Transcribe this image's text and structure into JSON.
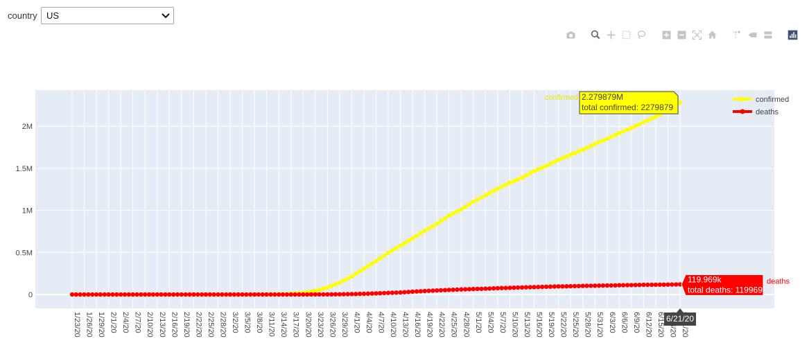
{
  "controls": {
    "country_label": "country",
    "country_value": "US"
  },
  "modebar": {
    "icons": [
      "camera-icon",
      "zoom-icon",
      "pan-icon",
      "box-select-icon",
      "lasso-select-icon",
      "zoom-in-icon",
      "zoom-out-icon",
      "autoscale-icon",
      "reset-axes-icon",
      "spike-lines-icon",
      "hover-closest-icon",
      "hover-compare-icon",
      "plotly-logo-icon"
    ],
    "active": [
      "zoom-icon",
      "plotly-logo-icon"
    ]
  },
  "chart_data": {
    "type": "line",
    "x_tick_labels": [
      "1/23/20",
      "1/26/20",
      "1/29/20",
      "2/1/20",
      "2/4/20",
      "2/7/20",
      "2/10/20",
      "2/13/20",
      "2/16/20",
      "2/19/20",
      "2/22/20",
      "2/25/20",
      "2/28/20",
      "3/2/20",
      "3/5/20",
      "3/8/20",
      "3/11/20",
      "3/14/20",
      "3/17/20",
      "3/20/20",
      "3/23/20",
      "3/26/20",
      "3/29/20",
      "4/1/20",
      "4/4/20",
      "4/7/20",
      "4/10/20",
      "4/13/20",
      "4/16/20",
      "4/19/20",
      "4/22/20",
      "4/25/20",
      "4/28/20",
      "5/1/20",
      "5/4/20",
      "5/7/20",
      "5/10/20",
      "5/13/20",
      "5/16/20",
      "5/19/20",
      "5/22/20",
      "5/25/20",
      "5/28/20",
      "5/31/20",
      "6/3/20",
      "6/6/20",
      "6/9/20",
      "6/12/20",
      "6/15/20",
      "6/18/20",
      "6/21/20"
    ],
    "y_ticks": [
      0,
      500000,
      1000000,
      1500000,
      2000000
    ],
    "y_tick_labels": [
      "0",
      "0.5M",
      "1M",
      "1.5M",
      "2M"
    ],
    "ylim": [
      -60000,
      2430000
    ],
    "grid": true,
    "legend_position": "top-right",
    "series": [
      {
        "name": "confirmed",
        "color": "#ffff00",
        "points": [
          [
            "1/23/20",
            1
          ],
          [
            "2/23/20",
            15
          ],
          [
            "3/1/20",
            30
          ],
          [
            "3/8/20",
            500
          ],
          [
            "3/15/20",
            3500
          ],
          [
            "3/20/20",
            19000
          ],
          [
            "3/23/20",
            43000
          ],
          [
            "3/26/20",
            83000
          ],
          [
            "3/29/20",
            140000
          ],
          [
            "4/1/20",
            215000
          ],
          [
            "4/4/20",
            308000
          ],
          [
            "4/7/20",
            398000
          ],
          [
            "4/10/20",
            496000
          ],
          [
            "4/13/20",
            580000
          ],
          [
            "4/16/20",
            667000
          ],
          [
            "4/19/20",
            759000
          ],
          [
            "4/22/20",
            840000
          ],
          [
            "4/25/20",
            938000
          ],
          [
            "4/28/20",
            1012000
          ],
          [
            "5/1/20",
            1103000
          ],
          [
            "5/4/20",
            1180000
          ],
          [
            "5/7/20",
            1257000
          ],
          [
            "5/10/20",
            1329000
          ],
          [
            "5/13/20",
            1390000
          ],
          [
            "5/16/20",
            1467000
          ],
          [
            "5/19/20",
            1528000
          ],
          [
            "5/22/20",
            1601000
          ],
          [
            "5/25/20",
            1662000
          ],
          [
            "5/28/20",
            1721000
          ],
          [
            "5/31/20",
            1790000
          ],
          [
            "6/3/20",
            1851000
          ],
          [
            "6/6/20",
            1920000
          ],
          [
            "6/9/20",
            1979000
          ],
          [
            "6/12/20",
            2048000
          ],
          [
            "6/15/20",
            2114000
          ],
          [
            "6/18/20",
            2191000
          ],
          [
            "6/21/20",
            2279879
          ]
        ]
      },
      {
        "name": "deaths",
        "color": "#ff0000",
        "points": [
          [
            "1/23/20",
            0
          ],
          [
            "3/1/20",
            1
          ],
          [
            "3/8/20",
            22
          ],
          [
            "3/15/20",
            60
          ],
          [
            "3/20/20",
            250
          ],
          [
            "3/23/20",
            600
          ],
          [
            "3/26/20",
            1300
          ],
          [
            "3/29/20",
            2500
          ],
          [
            "4/1/20",
            5000
          ],
          [
            "4/4/20",
            8500
          ],
          [
            "4/7/20",
            13000
          ],
          [
            "4/10/20",
            19000
          ],
          [
            "4/13/20",
            24000
          ],
          [
            "4/16/20",
            34000
          ],
          [
            "4/19/20",
            41000
          ],
          [
            "4/22/20",
            48000
          ],
          [
            "4/25/20",
            54000
          ],
          [
            "4/28/20",
            60000
          ],
          [
            "5/1/20",
            65000
          ],
          [
            "5/4/20",
            69000
          ],
          [
            "5/7/20",
            75000
          ],
          [
            "5/10/20",
            79000
          ],
          [
            "5/13/20",
            84000
          ],
          [
            "5/16/20",
            88000
          ],
          [
            "5/19/20",
            92000
          ],
          [
            "5/22/20",
            96000
          ],
          [
            "5/25/20",
            98000
          ],
          [
            "5/28/20",
            102000
          ],
          [
            "5/31/20",
            105000
          ],
          [
            "6/3/20",
            107000
          ],
          [
            "6/6/20",
            110000
          ],
          [
            "6/9/20",
            112000
          ],
          [
            "6/12/20",
            115000
          ],
          [
            "6/15/20",
            116000
          ],
          [
            "6/18/20",
            118000
          ],
          [
            "6/21/20",
            119969
          ]
        ]
      }
    ],
    "hover": {
      "x_label": "6/21/20",
      "confirmed": {
        "series_label": "confirmed",
        "value": "2.279879M",
        "detail": "total confirmed: 2279879"
      },
      "deaths": {
        "series_label": "deaths",
        "value": "119.969k",
        "detail": "total deaths: 119969"
      }
    }
  }
}
